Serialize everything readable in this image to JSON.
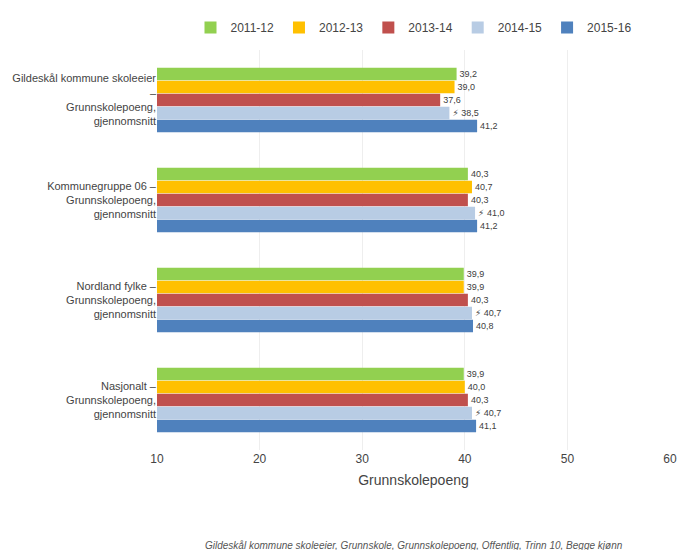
{
  "chart_data": {
    "type": "bar",
    "orientation": "horizontal",
    "categories": [
      "Gildeskål kommune skoleeier\n–\nGrunnskolepoeng,\ngjennomsnitt",
      "Kommunegruppe 06 –\nGrunnskolepoeng,\ngjennomsnitt",
      "Nordland fylke –\nGrunnskolepoeng,\ngjennomsnitt",
      "Nasjonalt –\nGrunnskolepoeng,\ngjennomsnitt"
    ],
    "series": [
      {
        "name": "2011-12",
        "color": "#92d050",
        "values": [
          39.2,
          40.3,
          39.9,
          39.9
        ],
        "value_labels": [
          "39,2",
          "40,3",
          "39,9",
          "39,9"
        ]
      },
      {
        "name": "2012-13",
        "color": "#ffc000",
        "values": [
          39.0,
          40.7,
          39.9,
          40.0
        ],
        "value_labels": [
          "39,0",
          "40,7",
          "39,9",
          "40,0"
        ]
      },
      {
        "name": "2013-14",
        "color": "#c0504d",
        "values": [
          37.6,
          40.3,
          40.3,
          40.3
        ],
        "value_labels": [
          "37,6",
          "40,3",
          "40,3",
          "40,3"
        ]
      },
      {
        "name": "2014-15",
        "color": "#b8cce4",
        "values": [
          38.5,
          41.0,
          40.7,
          40.7
        ],
        "value_labels": [
          "⚡ 38,5",
          "⚡ 41,0",
          "⚡ 40,7",
          "⚡ 40,7"
        ]
      },
      {
        "name": "2015-16",
        "color": "#4f81bd",
        "values": [
          41.2,
          41.2,
          40.8,
          41.1
        ],
        "value_labels": [
          "41,2",
          "41,2",
          "40,8",
          "41,1"
        ]
      }
    ],
    "xlabel": "Grunnskolepoeng",
    "xlim": [
      10,
      60
    ],
    "xticks": [
      10,
      20,
      30,
      40,
      50,
      60
    ],
    "grid": true,
    "legend": "top",
    "data_labels": true,
    "annotations": [
      "Gildeskål kommune skoleeier, Grunnskole, Grunnskolepoeng, Offentlig, Trinn 10, Begge kjønn"
    ]
  }
}
